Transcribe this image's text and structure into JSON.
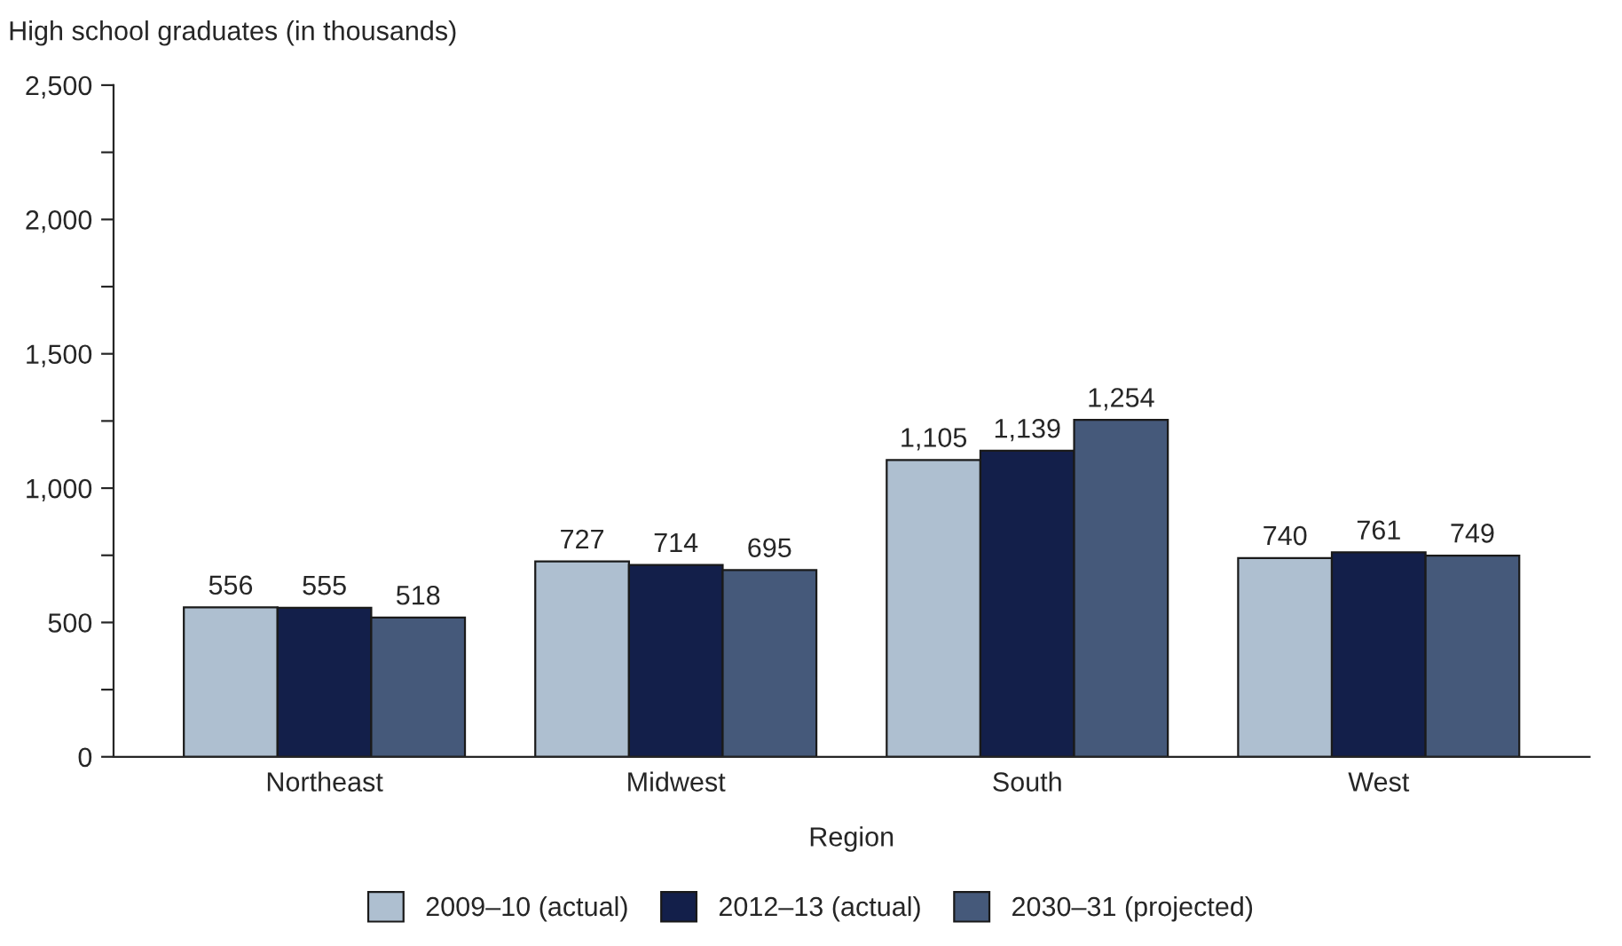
{
  "chart_data": {
    "type": "bar",
    "ylabel": "High school graduates (in thousands)",
    "xlabel": "Region",
    "categories": [
      "Northeast",
      "Midwest",
      "South",
      "West"
    ],
    "series": [
      {
        "name": "2009–10 (actual)",
        "color": "#aebfd0",
        "values": [
          556,
          727,
          1105,
          740
        ],
        "value_labels": [
          "556",
          "727",
          "1,105",
          "740"
        ]
      },
      {
        "name": "2012–13 (actual)",
        "color": "#131f4a",
        "values": [
          555,
          714,
          1139,
          761
        ],
        "value_labels": [
          "555",
          "714",
          "1,139",
          "761"
        ]
      },
      {
        "name": "2030–31 (projected)",
        "color": "#45597a",
        "values": [
          518,
          695,
          1254,
          749
        ],
        "value_labels": [
          "518",
          "695",
          "1,254",
          "749"
        ]
      }
    ],
    "ylim": [
      0,
      2500
    ],
    "yticks": [
      0,
      {
        "value": 250,
        "label": null
      },
      {
        "value": 500,
        "label": "500"
      },
      {
        "value": 750,
        "label": null
      },
      {
        "value": 1000,
        "label": "1,000"
      },
      {
        "value": 1250,
        "label": null
      },
      {
        "value": 1500,
        "label": "1,500"
      },
      {
        "value": 1750,
        "label": null
      },
      {
        "value": 2000,
        "label": "2,000"
      },
      {
        "value": 2250,
        "label": null
      },
      {
        "value": 2500,
        "label": "2,500"
      }
    ],
    "grid": false,
    "legend": "bottom"
  }
}
